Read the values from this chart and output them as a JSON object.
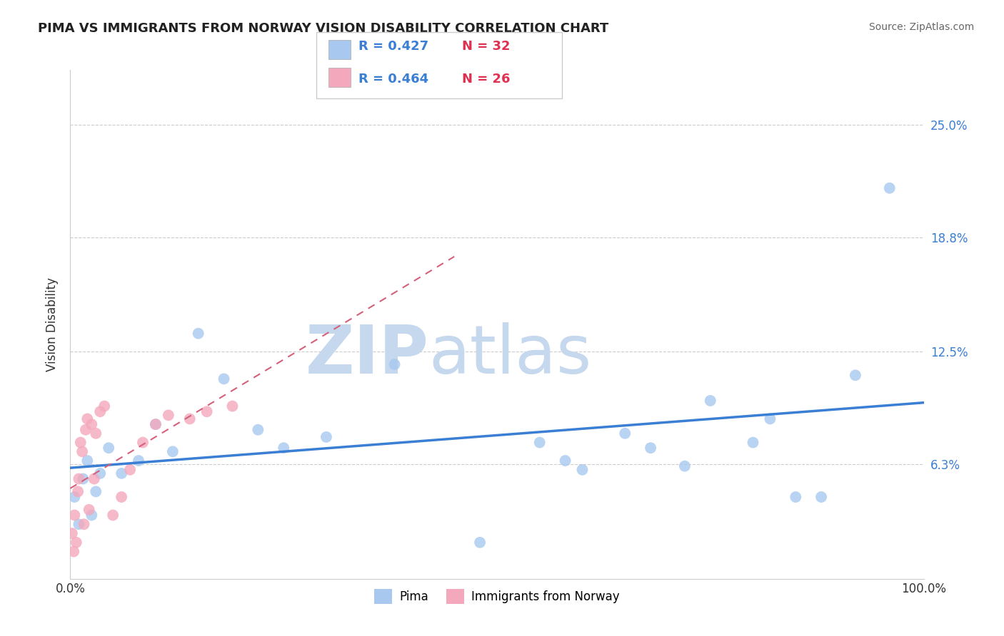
{
  "title": "PIMA VS IMMIGRANTS FROM NORWAY VISION DISABILITY CORRELATION CHART",
  "source": "Source: ZipAtlas.com",
  "ylabel": "Vision Disability",
  "legend_label1": "Pima",
  "legend_label2": "Immigrants from Norway",
  "R1": 0.427,
  "N1": 32,
  "R2": 0.464,
  "N2": 26,
  "color1": "#A8C8F0",
  "color2": "#F4A8BC",
  "trendline1_color": "#3A7FD4",
  "trendline2_color": "#D4607A",
  "watermark_ZIP_color": "#C5D8EE",
  "watermark_atlas_color": "#C5D8EE",
  "xmin": 0.0,
  "xmax": 100.0,
  "ymin": 0.0,
  "ymax": 28.0,
  "ytick_vals": [
    0.0,
    6.3,
    12.5,
    18.8,
    25.0
  ],
  "ytick_labels": [
    "",
    "6.3%",
    "12.5%",
    "18.8%",
    "25.0%"
  ],
  "pima_x": [
    0.5,
    1.0,
    1.5,
    2.0,
    2.5,
    3.0,
    3.5,
    4.5,
    6.0,
    8.0,
    10.0,
    12.0,
    15.0,
    18.0,
    22.0,
    25.0,
    30.0,
    38.0,
    48.0,
    55.0,
    58.0,
    60.0,
    65.0,
    68.0,
    72.0,
    75.0,
    80.0,
    82.0,
    85.0,
    88.0,
    92.0,
    96.0
  ],
  "pima_y": [
    4.5,
    3.0,
    5.5,
    6.5,
    3.5,
    4.8,
    5.8,
    7.2,
    5.8,
    6.5,
    8.5,
    7.0,
    13.5,
    11.0,
    8.2,
    7.2,
    7.8,
    11.8,
    2.0,
    7.5,
    6.5,
    6.0,
    8.0,
    7.2,
    6.2,
    9.8,
    7.5,
    8.8,
    4.5,
    4.5,
    11.2,
    21.5
  ],
  "norway_x": [
    0.2,
    0.4,
    0.5,
    0.7,
    0.9,
    1.0,
    1.2,
    1.4,
    1.6,
    1.8,
    2.0,
    2.2,
    2.5,
    2.8,
    3.0,
    3.5,
    4.0,
    5.0,
    6.0,
    7.0,
    8.5,
    10.0,
    11.5,
    14.0,
    16.0,
    19.0
  ],
  "norway_y": [
    2.5,
    1.5,
    3.5,
    2.0,
    4.8,
    5.5,
    7.5,
    7.0,
    3.0,
    8.2,
    8.8,
    3.8,
    8.5,
    5.5,
    8.0,
    9.2,
    9.5,
    3.5,
    4.5,
    6.0,
    7.5,
    8.5,
    9.0,
    8.8,
    9.2,
    9.5
  ],
  "norway_trend_xmax": 45.0
}
